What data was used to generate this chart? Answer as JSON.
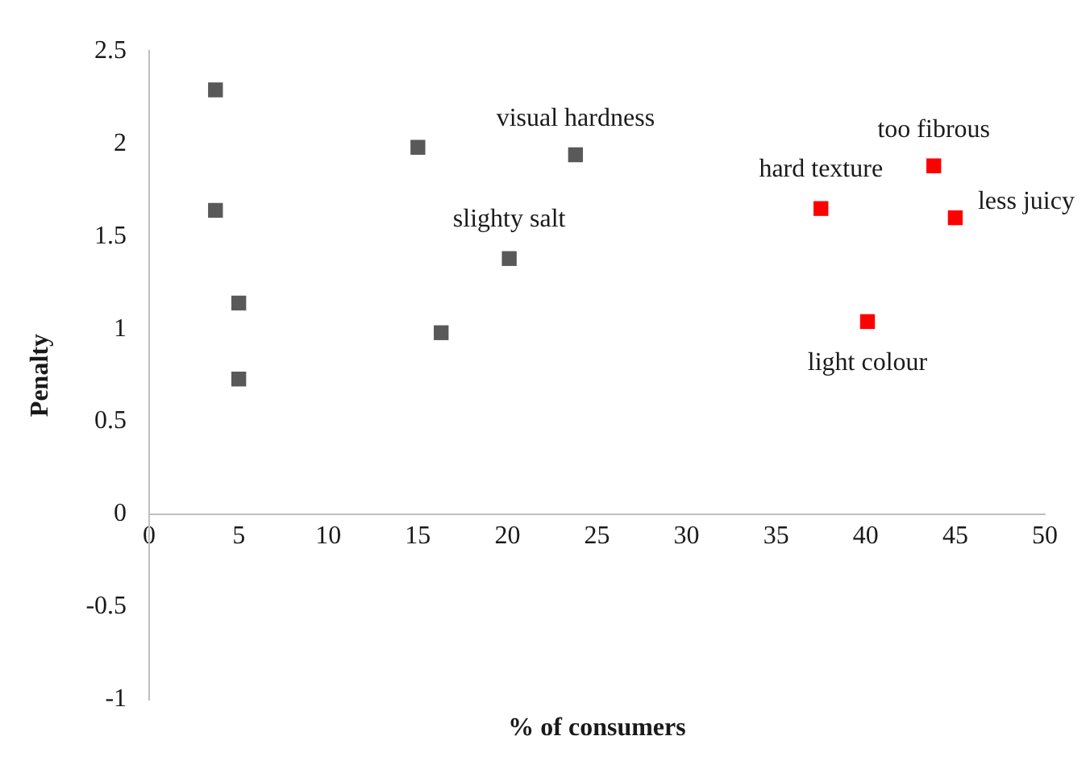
{
  "chart_data": {
    "type": "scatter",
    "xlabel": "% of consumers",
    "ylabel": "Penalty",
    "series": [
      {
        "color": "#595959",
        "x": [
          3.7,
          3.7,
          5.0,
          5.0,
          15.0,
          16.3,
          20.1,
          23.8
        ],
        "values": [
          2.29,
          1.64,
          1.14,
          0.73,
          1.98,
          0.98,
          1.38,
          1.94
        ]
      },
      {
        "color": "#ff0000",
        "x": [
          37.5,
          43.8,
          45.0,
          40.1
        ],
        "values": [
          1.65,
          1.88,
          1.6,
          1.04
        ]
      }
    ],
    "annotations": [
      {
        "text": "visual hardness",
        "x": 23.8,
        "y": 1.94
      },
      {
        "text": "slighty salt",
        "x": 20.1,
        "y": 1.38
      },
      {
        "text": "hard texture",
        "x": 37.5,
        "y": 1.65
      },
      {
        "text": "too fibrous",
        "x": 43.8,
        "y": 1.88
      },
      {
        "text": "less juicy",
        "x": 45.0,
        "y": 1.6
      },
      {
        "text": "light colour",
        "x": 40.1,
        "y": 1.04
      }
    ],
    "xlim": [
      0,
      50
    ],
    "xticks": [
      0,
      5,
      10,
      15,
      20,
      25,
      30,
      35,
      40,
      45,
      50
    ],
    "ylim": [
      -1,
      2.5
    ],
    "yticks": [
      -1,
      -0.5,
      0,
      0.5,
      1,
      1.5,
      2,
      2.5
    ],
    "marker": "square",
    "grid": false,
    "legend": false
  }
}
